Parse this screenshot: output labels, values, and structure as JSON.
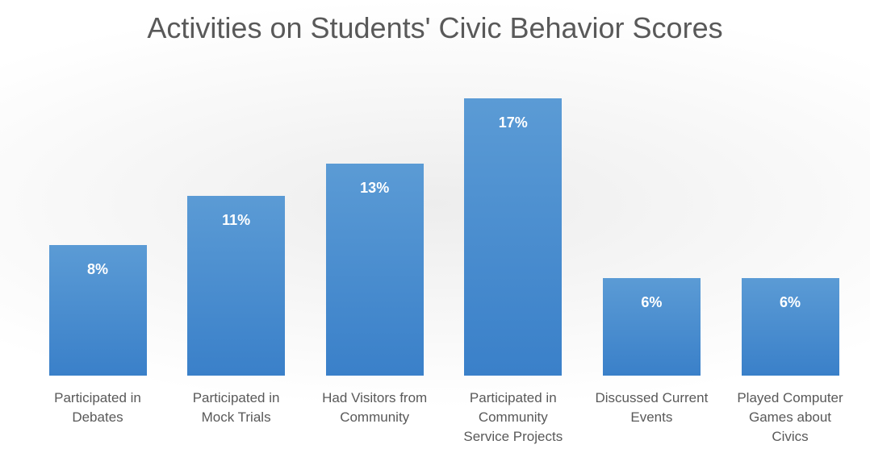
{
  "chart_data": {
    "type": "bar",
    "title": "Activities on Students' Civic Behavior Scores",
    "categories": [
      "Participated in\nDebates",
      "Participated in\nMock Trials",
      "Had Visitors from\nCommunity",
      "Participated in\nCommunity\nService Projects",
      "Discussed Current\nEvents",
      "Played Computer\nGames about\nCivics"
    ],
    "values": [
      8,
      11,
      13,
      17,
      6,
      6
    ],
    "value_labels": [
      "8%",
      "11%",
      "13%",
      "17%",
      "6%",
      "6%"
    ],
    "color": "#5b9bd5"
  }
}
